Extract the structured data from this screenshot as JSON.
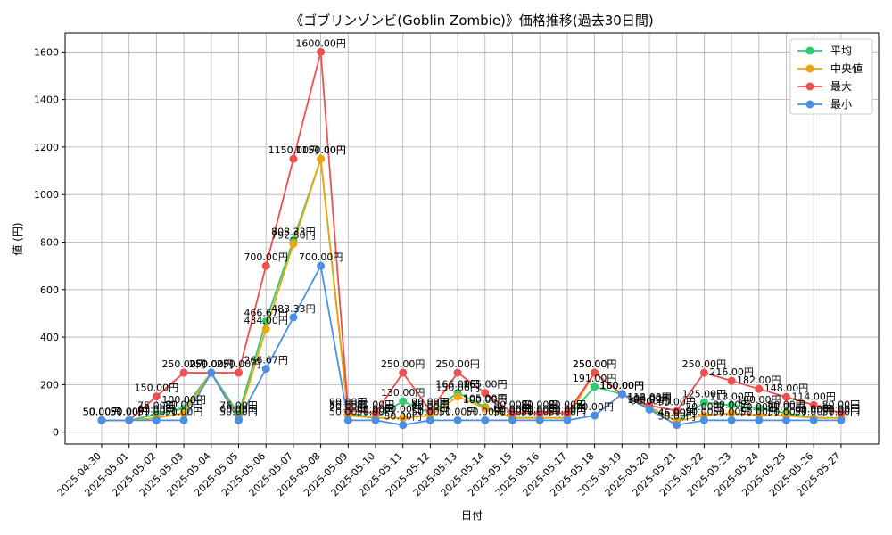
{
  "chart_data": {
    "type": "line",
    "title": "《ゴブリンゾンビ(Goblin Zombie)》価格推移(過去30日間)",
    "xlabel": "日付",
    "ylabel": "値 (円)",
    "ylim": [
      -50,
      1680
    ],
    "yticks": [
      0,
      200,
      400,
      600,
      800,
      1000,
      1200,
      1400,
      1600
    ],
    "grid": true,
    "legend_position": "top-right",
    "categories": [
      "2025-04-30",
      "2025-05-01",
      "2025-05-02",
      "2025-05-03",
      "2025-05-04",
      "2025-05-05",
      "2025-05-06",
      "2025-05-07",
      "2025-05-08",
      "2025-05-09",
      "2025-05-10",
      "2025-05-11",
      "2025-05-12",
      "2025-05-13",
      "2025-05-14",
      "2025-05-15",
      "2025-05-16",
      "2025-05-17",
      "2025-05-18",
      "2025-05-19",
      "2025-05-20",
      "2025-05-21",
      "2025-05-22",
      "2025-05-23",
      "2025-05-24",
      "2025-05-25",
      "2025-05-26",
      "2025-05-27"
    ],
    "series": [
      {
        "name": "平均",
        "color": "#2ecc71",
        "values": [
          50,
          50,
          75,
          100,
          250,
          76,
          466.67,
          808.33,
          1150,
          80,
          60,
          130,
          80,
          166,
          105,
          60,
          60,
          60,
          191,
          160,
          105,
          46,
          125,
          113,
          100,
          80,
          60,
          60
        ]
      },
      {
        "name": "中央値",
        "color": "#f0a30a",
        "values": [
          50,
          50,
          60,
          80,
          250,
          60,
          434,
          792.5,
          1150,
          70,
          60,
          60,
          70,
          150,
          100,
          60,
          60,
          60,
          250,
          160,
          100,
          46,
          70,
          80,
          70,
          70,
          60,
          60
        ]
      },
      {
        "name": "最大",
        "color": "#ef4f4f",
        "values": [
          50,
          50,
          150,
          250,
          250,
          250,
          700,
          1150,
          1600,
          90,
          80,
          250,
          90,
          250,
          165,
          80,
          80,
          80,
          250,
          160,
          112,
          90,
          250,
          216,
          182,
          148,
          114,
          80
        ]
      },
      {
        "name": "最小",
        "color": "#4a90e2",
        "values": [
          50,
          50,
          50,
          50,
          250,
          50,
          266.67,
          483.33,
          700,
          50,
          50,
          30,
          50,
          50,
          50,
          50,
          50,
          50,
          70,
          160,
          95,
          30,
          50,
          50,
          50,
          50,
          50,
          50
        ]
      }
    ],
    "data_label_suffix": "円"
  }
}
